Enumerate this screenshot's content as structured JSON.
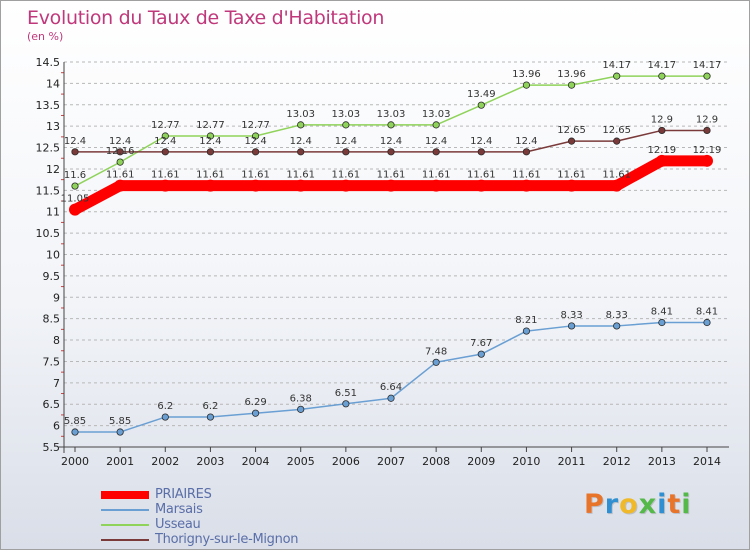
{
  "title": "Evolution du Taux de Taxe d'Habitation",
  "subtitle": "(en %)",
  "logo": {
    "letters": [
      "P",
      "r",
      "o",
      "x",
      "i",
      "t",
      "i"
    ],
    "colors": [
      "#e8742a",
      "#2f8fd0",
      "#f0b92a",
      "#54b948",
      "#2f8fd0",
      "#e8742a",
      "#54b948"
    ]
  },
  "chart_data": {
    "type": "line",
    "title": "Evolution du Taux de Taxe d'Habitation",
    "ylabel": "(en %)",
    "xlabel": "",
    "x": [
      "2000",
      "2001",
      "2002",
      "2003",
      "2004",
      "2005",
      "2006",
      "2007",
      "2008",
      "2009",
      "2010",
      "2011",
      "2012",
      "2013",
      "2014"
    ],
    "ylim": [
      5.5,
      14.5
    ],
    "yticks": [
      "5.5",
      "6",
      "6.5",
      "7",
      "7.5",
      "8",
      "8.5",
      "9",
      "9.5",
      "10",
      "10.5",
      "11",
      "11.5",
      "12",
      "12.5",
      "13",
      "13.5",
      "14",
      "14.5"
    ],
    "grid": "horizontal dashed",
    "legend": "bottom-left",
    "series": [
      {
        "name": "PRIAIRES",
        "color": "#ff0000",
        "values": [
          11.05,
          11.61,
          11.61,
          11.61,
          11.61,
          11.61,
          11.61,
          11.61,
          11.61,
          11.61,
          11.61,
          11.61,
          11.61,
          12.19,
          12.19
        ],
        "labels": [
          "11.05",
          "11.61",
          "11.61",
          "11.61",
          "11.61",
          "11.61",
          "11.61",
          "11.61",
          "11.61",
          "11.61",
          "11.61",
          "11.61",
          "11.61",
          "12.19",
          "12.19"
        ]
      },
      {
        "name": "Marsais",
        "color": "#6a9fd3",
        "values": [
          5.85,
          5.85,
          6.2,
          6.2,
          6.29,
          6.38,
          6.51,
          6.64,
          7.48,
          7.67,
          8.21,
          8.33,
          8.33,
          8.41,
          8.41
        ],
        "labels": [
          "5.85",
          "5.85",
          "6.2",
          "6.2",
          "6.29",
          "6.38",
          "6.51",
          "6.64",
          "7.48",
          "7.67",
          "8.21",
          "8.33",
          "8.33",
          "8.41",
          "8.41"
        ]
      },
      {
        "name": "Usseau",
        "color": "#8fd35a",
        "values": [
          11.6,
          12.16,
          12.77,
          12.77,
          12.77,
          13.03,
          13.03,
          13.03,
          13.03,
          13.49,
          13.96,
          13.96,
          14.17,
          14.17,
          14.17
        ],
        "labels": [
          "11.6",
          "12.16",
          "12.77",
          "12.77",
          "12.77",
          "13.03",
          "13.03",
          "13.03",
          "13.03",
          "13.49",
          "13.96",
          "13.96",
          "14.17",
          "14.17",
          "14.17"
        ]
      },
      {
        "name": "Thorigny-sur-le-Mignon",
        "color": "#7a3a3a",
        "values": [
          12.4,
          12.4,
          12.4,
          12.4,
          12.4,
          12.4,
          12.4,
          12.4,
          12.4,
          12.4,
          12.4,
          12.65,
          12.65,
          12.9,
          12.9
        ],
        "labels": [
          "12.4",
          "12.4",
          "12.4",
          "12.4",
          "12.4",
          "12.4",
          "12.4",
          "12.4",
          "12.4",
          "12.4",
          "12.4",
          "12.65",
          "12.65",
          "12.9",
          "12.9"
        ]
      }
    ]
  }
}
